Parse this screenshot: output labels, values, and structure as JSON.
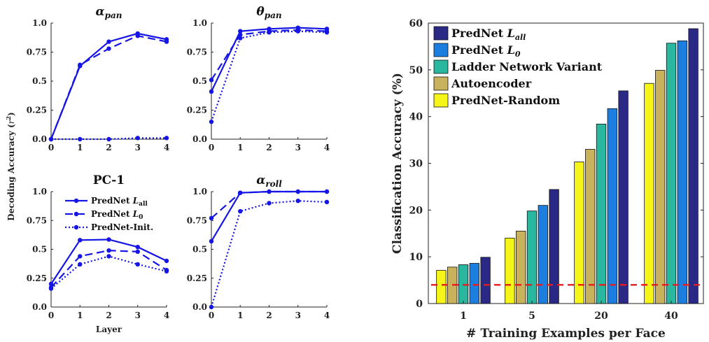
{
  "chart_data": [
    {
      "type": "line",
      "title": "αpan",
      "title_base": "α",
      "title_sub": "pan",
      "x": [
        0,
        1,
        2,
        3,
        4
      ],
      "xlim": [
        0,
        4
      ],
      "ylim": [
        0,
        1
      ],
      "yticks": [
        "0.0",
        "0.25",
        "0.5",
        "0.75",
        "1.0"
      ],
      "xticks": [
        "0",
        "1",
        "2",
        "3",
        "4"
      ],
      "series": [
        {
          "name": "PredNet Lall",
          "style": "solid",
          "values": [
            0.0,
            0.63,
            0.84,
            0.91,
            0.86
          ]
        },
        {
          "name": "PredNet L0",
          "style": "dashed",
          "values": [
            0.0,
            0.64,
            0.78,
            0.89,
            0.84
          ]
        },
        {
          "name": "PredNet-Init.",
          "style": "dotted",
          "values": [
            0.0,
            0.0,
            0.0,
            0.01,
            0.01
          ]
        }
      ]
    },
    {
      "type": "line",
      "title": "θpan",
      "title_base": "θ",
      "title_sub": "pan",
      "x": [
        0,
        1,
        2,
        3,
        4
      ],
      "xlim": [
        0,
        4
      ],
      "ylim": [
        0,
        1
      ],
      "yticks": [
        "0.0",
        "0.25",
        "0.5",
        "0.75",
        "1.0"
      ],
      "xticks": [
        "0",
        "1",
        "2",
        "3",
        "4"
      ],
      "series": [
        {
          "name": "PredNet Lall",
          "style": "solid",
          "values": [
            0.41,
            0.93,
            0.95,
            0.96,
            0.95
          ]
        },
        {
          "name": "PredNet L0",
          "style": "dashed",
          "values": [
            0.51,
            0.9,
            0.93,
            0.94,
            0.93
          ]
        },
        {
          "name": "PredNet-Init.",
          "style": "dotted",
          "values": [
            0.15,
            0.87,
            0.92,
            0.93,
            0.92
          ]
        }
      ]
    },
    {
      "type": "line",
      "title": "PC-1",
      "x": [
        0,
        1,
        2,
        3,
        4
      ],
      "xlim": [
        0,
        4
      ],
      "ylim": [
        0,
        1
      ],
      "yticks": [
        "0.0",
        "0.25",
        "0.5",
        "0.75",
        "1.0"
      ],
      "xticks": [
        "0",
        "1",
        "2",
        "3",
        "4"
      ],
      "xlabel": "Layer",
      "legend": "upper-right",
      "series": [
        {
          "name": "PredNet Lall",
          "legend_base": "PredNet ",
          "legend_italic": "L",
          "legend_sub": "all",
          "style": "solid",
          "values": [
            0.2,
            0.58,
            0.585,
            0.52,
            0.4
          ]
        },
        {
          "name": "PredNet L0",
          "legend_base": "PredNet ",
          "legend_italic": "L",
          "legend_sub": "0",
          "style": "dashed",
          "values": [
            0.17,
            0.44,
            0.49,
            0.48,
            0.32
          ]
        },
        {
          "name": "PredNet-Init.",
          "legend_base": "PredNet-Init.",
          "style": "dotted",
          "values": [
            0.16,
            0.37,
            0.44,
            0.37,
            0.31
          ]
        }
      ]
    },
    {
      "type": "line",
      "title": "αroll",
      "title_base": "α",
      "title_sub": "roll",
      "x": [
        0,
        1,
        2,
        3,
        4
      ],
      "xlim": [
        0,
        4
      ],
      "ylim": [
        0,
        1
      ],
      "yticks": [
        "0.0",
        "0.25",
        "0.5",
        "0.75",
        "1.0"
      ],
      "xticks": [
        "0",
        "1",
        "2",
        "3",
        "4"
      ],
      "series": [
        {
          "name": "PredNet Lall",
          "style": "solid",
          "values": [
            0.57,
            0.99,
            1.0,
            1.0,
            1.0
          ]
        },
        {
          "name": "PredNet L0",
          "style": "dashed",
          "values": [
            0.77,
            0.99,
            1.0,
            1.0,
            1.0
          ]
        },
        {
          "name": "PredNet-Init.",
          "style": "dotted",
          "values": [
            0.0,
            0.83,
            0.9,
            0.92,
            0.91
          ]
        }
      ]
    },
    {
      "type": "bar",
      "categories": [
        "1",
        "5",
        "20",
        "40"
      ],
      "xlabel": "# Training Examples per Face",
      "ylabel": "Classification Accuracy (%)",
      "ylim": [
        0,
        60
      ],
      "yticks": [
        "0",
        "10",
        "20",
        "30",
        "40",
        "50",
        "60"
      ],
      "chance_level": 4,
      "legend": "upper-left",
      "series": [
        {
          "name": "PredNet-Random",
          "values": [
            7.1,
            14.0,
            30.3,
            47.1
          ]
        },
        {
          "name": "Autoencoder",
          "values": [
            7.8,
            15.5,
            33.0,
            49.9
          ]
        },
        {
          "name": "Ladder Network Variant",
          "values": [
            8.3,
            19.8,
            38.4,
            55.7
          ]
        },
        {
          "name": "PredNet L0",
          "legend_base": "PredNet ",
          "legend_italic": "L",
          "legend_sub": "0",
          "values": [
            8.6,
            21.0,
            41.7,
            56.2
          ]
        },
        {
          "name": "PredNet Lall",
          "legend_base": "PredNet ",
          "legend_italic": "L",
          "legend_sub": "all",
          "values": [
            9.9,
            24.4,
            45.5,
            58.8
          ]
        }
      ],
      "legend_order": [
        "PredNet Lall",
        "PredNet L0",
        "Ladder Network Variant",
        "Autoencoder",
        "PredNet-Random"
      ]
    }
  ],
  "shared": {
    "ylabel_base": "Decoding Accuracy (",
    "ylabel_var": "r",
    "ylabel_sup": "2",
    "ylabel_end": ")"
  },
  "colors": {
    "line": "#1515e6",
    "chance": "#e61c1c",
    "bar_series": [
      "#f5f51a",
      "#c9b25e",
      "#2ab7a0",
      "#1c7fe0",
      "#2a2a86"
    ]
  }
}
